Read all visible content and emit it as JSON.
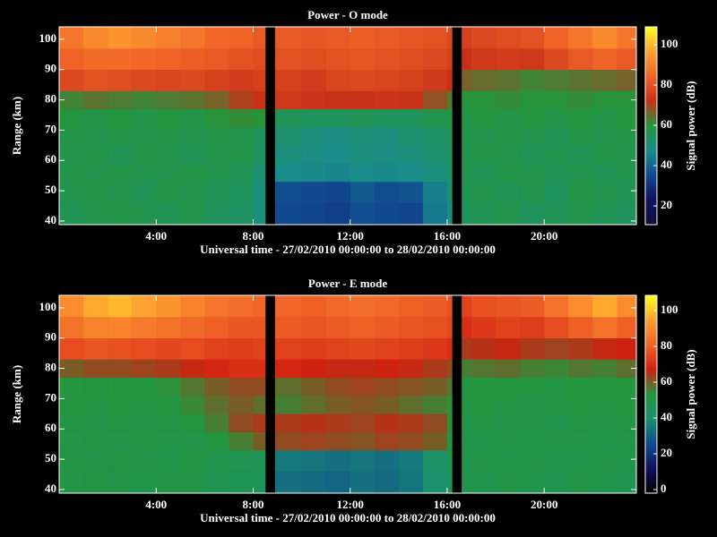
{
  "chart_data": [
    {
      "type": "heatmap",
      "title": "Power - O mode",
      "xlabel": "Universal time - 27/02/2010 00:00:00 to 28/02/2010 00:00:00",
      "ylabel": "Range (km)",
      "colorbar_label": "Signal power (dB)",
      "xlim": [
        0,
        23.8
      ],
      "xticks": [
        {
          "value": 4,
          "label": "4:00"
        },
        {
          "value": 8,
          "label": "8:00"
        },
        {
          "value": 12,
          "label": "12:00"
        },
        {
          "value": 16,
          "label": "16:00"
        },
        {
          "value": 20,
          "label": "20:00"
        }
      ],
      "ylim": [
        38.8,
        104.1
      ],
      "yticks": [
        40,
        50,
        60,
        70,
        80,
        90,
        100
      ],
      "clim": [
        10.7,
        108.9
      ],
      "cticks": [
        20,
        40,
        60,
        80,
        100
      ],
      "colormap": [
        "#10103a",
        "#101060",
        "#104a90",
        "#1a8c8c",
        "#24963c",
        "#c83018",
        "#f06428",
        "#ffa030",
        "#ffff20"
      ],
      "xbins": [
        0,
        1,
        2,
        3,
        4,
        5,
        6,
        7,
        8,
        8.5,
        8.9,
        10,
        11,
        12,
        13,
        14,
        15,
        16,
        16.2,
        16.6,
        17,
        18,
        19,
        20,
        21,
        22,
        23,
        23.8
      ],
      "ybins": [
        38.8,
        46,
        53,
        59,
        65,
        71,
        77,
        83,
        90,
        97,
        104.1
      ],
      "values": [
        [
          56,
          57,
          58,
          57,
          56,
          57,
          55,
          54,
          50,
          null,
          35,
          34,
          33,
          36,
          35,
          34,
          44,
          50,
          null,
          55,
          56,
          57,
          55,
          56,
          57,
          56,
          55
        ],
        [
          57,
          58,
          57,
          56,
          58,
          57,
          56,
          55,
          50,
          null,
          36,
          35,
          34,
          38,
          36,
          37,
          45,
          52,
          null,
          56,
          57,
          56,
          57,
          55,
          58,
          57,
          56
        ],
        [
          58,
          57,
          58,
          57,
          57,
          58,
          57,
          56,
          52,
          null,
          48,
          47,
          46,
          48,
          47,
          48,
          50,
          54,
          null,
          57,
          56,
          58,
          57,
          56,
          57,
          56,
          57
        ],
        [
          57,
          58,
          56,
          58,
          57,
          56,
          57,
          58,
          54,
          null,
          50,
          49,
          48,
          50,
          49,
          50,
          52,
          55,
          null,
          57,
          58,
          57,
          56,
          57,
          56,
          58,
          57
        ],
        [
          58,
          57,
          58,
          57,
          58,
          57,
          58,
          57,
          55,
          null,
          52,
          50,
          49,
          51,
          50,
          52,
          53,
          56,
          null,
          58,
          57,
          58,
          57,
          56,
          58,
          57,
          58
        ],
        [
          59,
          58,
          59,
          58,
          59,
          58,
          60,
          61,
          60,
          null,
          56,
          55,
          55,
          56,
          55,
          55,
          57,
          58,
          null,
          58,
          59,
          58,
          59,
          58,
          59,
          58,
          59
        ],
        [
          62,
          64,
          63,
          62,
          63,
          64,
          66,
          70,
          72,
          null,
          74,
          73,
          72,
          72,
          73,
          72,
          68,
          63,
          null,
          60,
          60,
          61,
          60,
          60,
          61,
          60,
          60
        ],
        [
          78,
          80,
          79,
          78,
          77,
          78,
          76,
          75,
          76,
          null,
          76,
          75,
          77,
          78,
          77,
          76,
          74,
          72,
          null,
          66,
          65,
          64,
          62,
          63,
          64,
          65,
          66
        ],
        [
          84,
          86,
          86,
          85,
          84,
          83,
          82,
          80,
          79,
          null,
          80,
          79,
          80,
          81,
          80,
          79,
          78,
          76,
          null,
          72,
          74,
          75,
          74,
          78,
          82,
          84,
          82
        ],
        [
          88,
          92,
          94,
          92,
          90,
          88,
          85,
          84,
          82,
          null,
          82,
          81,
          82,
          83,
          82,
          81,
          80,
          78,
          null,
          76,
          78,
          79,
          80,
          84,
          88,
          92,
          88
        ]
      ]
    },
    {
      "type": "heatmap",
      "title": "Power - E mode",
      "xlabel": "Universal time - 27/02/2010 00:00:00 to 28/02/2010 00:00:00",
      "ylabel": "Range (km)",
      "colorbar_label": "Signal power (dB)",
      "xlim": [
        0,
        23.8
      ],
      "xticks": [
        {
          "value": 4,
          "label": "4:00"
        },
        {
          "value": 8,
          "label": "8:00"
        },
        {
          "value": 12,
          "label": "12:00"
        },
        {
          "value": 16,
          "label": "16:00"
        },
        {
          "value": 20,
          "label": "20:00"
        }
      ],
      "ylim": [
        38.8,
        104.1
      ],
      "yticks": [
        40,
        50,
        60,
        70,
        80,
        90,
        100
      ],
      "clim": [
        -2,
        108.5
      ],
      "cticks": [
        0,
        20,
        40,
        60,
        80,
        100
      ],
      "colormap": [
        "#000000",
        "#101060",
        "#104a90",
        "#1a9070",
        "#24963c",
        "#d02010",
        "#f06428",
        "#ffa030",
        "#ffff20"
      ],
      "xbins": [
        0,
        1,
        2,
        3,
        4,
        5,
        6,
        7,
        8,
        8.5,
        8.9,
        10,
        11,
        12,
        13,
        14,
        15,
        16,
        16.2,
        16.6,
        17,
        18,
        19,
        20,
        21,
        22,
        23,
        23.8
      ],
      "ybins": [
        38.8,
        46,
        53,
        59,
        65,
        71,
        77,
        83,
        90,
        97,
        104.1
      ],
      "values": [
        [
          50,
          51,
          50,
          49,
          50,
          50,
          48,
          47,
          46,
          null,
          33,
          32,
          31,
          33,
          32,
          34,
          40,
          46,
          null,
          48,
          49,
          50,
          49,
          48,
          50,
          49,
          48
        ],
        [
          51,
          50,
          51,
          50,
          49,
          51,
          49,
          48,
          47,
          null,
          35,
          34,
          33,
          34,
          33,
          35,
          42,
          47,
          null,
          49,
          50,
          49,
          50,
          49,
          49,
          50,
          49
        ],
        [
          50,
          51,
          50,
          51,
          50,
          50,
          52,
          56,
          60,
          null,
          62,
          63,
          62,
          61,
          63,
          62,
          60,
          52,
          null,
          50,
          49,
          50,
          49,
          50,
          50,
          49,
          50
        ],
        [
          51,
          50,
          51,
          50,
          51,
          52,
          56,
          62,
          64,
          null,
          64,
          65,
          64,
          63,
          65,
          64,
          62,
          54,
          null,
          50,
          51,
          50,
          50,
          49,
          51,
          50,
          51
        ],
        [
          52,
          51,
          52,
          51,
          52,
          55,
          58,
          60,
          58,
          null,
          56,
          58,
          60,
          61,
          60,
          58,
          56,
          54,
          null,
          51,
          52,
          51,
          50,
          51,
          52,
          51,
          52
        ],
        [
          53,
          52,
          53,
          52,
          54,
          57,
          60,
          62,
          62,
          null,
          58,
          60,
          62,
          63,
          62,
          61,
          60,
          57,
          null,
          52,
          53,
          52,
          52,
          51,
          53,
          52,
          53
        ],
        [
          60,
          62,
          62,
          63,
          64,
          66,
          68,
          70,
          70,
          null,
          68,
          67,
          66,
          66,
          67,
          66,
          64,
          62,
          null,
          56,
          57,
          58,
          56,
          55,
          57,
          56,
          58
        ],
        [
          76,
          78,
          77,
          76,
          75,
          76,
          74,
          73,
          74,
          null,
          74,
          73,
          74,
          75,
          74,
          73,
          72,
          70,
          null,
          64,
          65,
          66,
          64,
          63,
          64,
          66,
          67
        ],
        [
          84,
          88,
          88,
          86,
          84,
          82,
          80,
          78,
          78,
          null,
          79,
          78,
          79,
          80,
          79,
          78,
          77,
          75,
          null,
          70,
          72,
          74,
          73,
          76,
          80,
          84,
          80
        ],
        [
          90,
          96,
          98,
          95,
          92,
          88,
          85,
          83,
          81,
          null,
          81,
          80,
          82,
          83,
          82,
          80,
          79,
          77,
          null,
          74,
          77,
          78,
          79,
          84,
          90,
          96,
          90
        ]
      ]
    }
  ]
}
